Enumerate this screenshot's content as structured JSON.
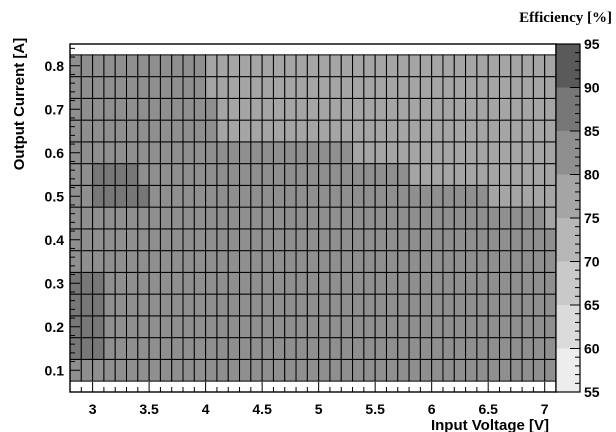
{
  "chart_data": {
    "type": "heatmap",
    "title": "",
    "xlabel": "Input Voltage [V]",
    "ylabel": "Output Current [A]",
    "zlabel": "Efficiency [%]",
    "xlim": [
      2.8,
      7.1
    ],
    "ylim": [
      0.05,
      0.85
    ],
    "zlim": [
      55,
      95
    ],
    "x_ticks": [
      3,
      3.5,
      4,
      4.5,
      5,
      5.5,
      6,
      6.5,
      7
    ],
    "x_tick_labels": [
      "3",
      "3.5",
      "4",
      "4.5",
      "5",
      "5.5",
      "6",
      "6.5",
      "7"
    ],
    "y_ticks": [
      0.1,
      0.2,
      0.3,
      0.4,
      0.5,
      0.6,
      0.7,
      0.8
    ],
    "y_tick_labels": [
      "0.1",
      "0.2",
      "0.3",
      "0.4",
      "0.5",
      "0.6",
      "0.7",
      "0.8"
    ],
    "z_ticks": [
      55,
      60,
      65,
      70,
      75,
      80,
      85,
      90,
      95
    ],
    "z_tick_labels": [
      "55",
      "60",
      "65",
      "70",
      "75",
      "80",
      "85",
      "90",
      "95"
    ],
    "x_bins": [
      2.8,
      2.9,
      3.0,
      3.1,
      3.2,
      3.3,
      3.4,
      3.5,
      3.6,
      3.7,
      3.8,
      3.9,
      4.0,
      4.1,
      4.2,
      4.3,
      4.4,
      4.5,
      4.6,
      4.7,
      4.8,
      4.9,
      5.0,
      5.1,
      5.2,
      5.3,
      5.4,
      5.5,
      5.6,
      5.7,
      5.8,
      5.9,
      6.0,
      6.1,
      6.2,
      6.3,
      6.4,
      6.5,
      6.6,
      6.7,
      6.8,
      6.9,
      7.0
    ],
    "y_bins": [
      0.1,
      0.15,
      0.2,
      0.25,
      0.3,
      0.35,
      0.4,
      0.45,
      0.5,
      0.55,
      0.6,
      0.65,
      0.7,
      0.75,
      0.8
    ],
    "cell_width": 0.1,
    "cell_height": 0.05,
    "z_values": [
      [
        83,
        81,
        80,
        80,
        80,
        80,
        80,
        80,
        80,
        80,
        80,
        80,
        80,
        80,
        80,
        80,
        80,
        80,
        80,
        80,
        80,
        80,
        80,
        80,
        80,
        80,
        80,
        80,
        80,
        80,
        80,
        80,
        80,
        80,
        80,
        80,
        80,
        80,
        80,
        80,
        80,
        80,
        80
      ],
      [
        87,
        86,
        85,
        84,
        84,
        84,
        84,
        84,
        84,
        84,
        84,
        84,
        84,
        84,
        84,
        84,
        84,
        84,
        84,
        84,
        84,
        84,
        84,
        84,
        84,
        84,
        84,
        84,
        84,
        84,
        82,
        82,
        82,
        82,
        82,
        82,
        82,
        82,
        82,
        82,
        82,
        82,
        80
      ],
      [
        87,
        86,
        85,
        84,
        84,
        84,
        84,
        84,
        84,
        84,
        84,
        84,
        84,
        84,
        84,
        84,
        84,
        84,
        84,
        84,
        84,
        84,
        84,
        84,
        84,
        84,
        84,
        84,
        84,
        84,
        82,
        82,
        82,
        82,
        82,
        82,
        82,
        82,
        82,
        82,
        82,
        82,
        80
      ],
      [
        87,
        86,
        85,
        84,
        84,
        84,
        84,
        84,
        84,
        84,
        84,
        84,
        84,
        84,
        84,
        84,
        84,
        84,
        84,
        84,
        84,
        84,
        84,
        84,
        84,
        84,
        84,
        84,
        84,
        84,
        82,
        82,
        82,
        82,
        82,
        82,
        82,
        82,
        82,
        82,
        82,
        82,
        80
      ],
      [
        87,
        86,
        85,
        84,
        84,
        84,
        84,
        84,
        84,
        84,
        84,
        84,
        84,
        84,
        84,
        84,
        84,
        84,
        84,
        84,
        84,
        84,
        84,
        84,
        84,
        84,
        84,
        84,
        84,
        84,
        82,
        82,
        82,
        82,
        82,
        82,
        82,
        82,
        82,
        82,
        82,
        82,
        80
      ],
      [
        83,
        83,
        83,
        83,
        83,
        83,
        83,
        83,
        83,
        83,
        83,
        83,
        83,
        84,
        84,
        84,
        84,
        84,
        84,
        84,
        84,
        84,
        84,
        84,
        84,
        82,
        82,
        82,
        82,
        82,
        82,
        82,
        82,
        82,
        82,
        82,
        82,
        80,
        80,
        80,
        80,
        80,
        80
      ],
      [
        83,
        83,
        83,
        83,
        83,
        83,
        83,
        83,
        83,
        83,
        83,
        83,
        83,
        84,
        84,
        84,
        84,
        84,
        84,
        84,
        84,
        84,
        84,
        84,
        84,
        82,
        82,
        82,
        82,
        82,
        82,
        82,
        82,
        82,
        82,
        82,
        82,
        80,
        80,
        80,
        80,
        80,
        80
      ],
      [
        83,
        83,
        83,
        83,
        83,
        83,
        83,
        83,
        83,
        83,
        83,
        83,
        83,
        83,
        83,
        83,
        83,
        83,
        83,
        83,
        83,
        83,
        83,
        83,
        83,
        82,
        82,
        82,
        82,
        82,
        82,
        82,
        80,
        80,
        80,
        80,
        80,
        80,
        80,
        80,
        80,
        80,
        78
      ],
      [
        83,
        84,
        85,
        85,
        85,
        85,
        85,
        84,
        84,
        84,
        84,
        82,
        82,
        82,
        82,
        82,
        82,
        82,
        82,
        82,
        82,
        82,
        82,
        82,
        82,
        80,
        80,
        80,
        80,
        80,
        80,
        80,
        80,
        80,
        80,
        80,
        80,
        78,
        78,
        78,
        78,
        78,
        78
      ],
      [
        83,
        84,
        85,
        85,
        85,
        85,
        84,
        84,
        84,
        84,
        82,
        82,
        82,
        82,
        82,
        82,
        82,
        80,
        80,
        80,
        80,
        80,
        80,
        80,
        80,
        80,
        80,
        80,
        80,
        80,
        78,
        78,
        78,
        78,
        78,
        78,
        78,
        78,
        78,
        78,
        78,
        78,
        78
      ],
      [
        83,
        83,
        83,
        83,
        82,
        82,
        82,
        82,
        82,
        82,
        80,
        80,
        80,
        80,
        80,
        80,
        80,
        80,
        80,
        80,
        80,
        80,
        80,
        80,
        80,
        78,
        78,
        78,
        78,
        78,
        78,
        78,
        78,
        78,
        78,
        78,
        78,
        78,
        78,
        78,
        78,
        78,
        78
      ],
      [
        80,
        80,
        80,
        80,
        80,
        80,
        80,
        80,
        80,
        80,
        80,
        80,
        80,
        78,
        78,
        78,
        78,
        78,
        78,
        78,
        78,
        78,
        78,
        78,
        78,
        78,
        78,
        78,
        78,
        78,
        78,
        78,
        78,
        78,
        78,
        78,
        78,
        78,
        78,
        78,
        78,
        78,
        78
      ],
      [
        80,
        80,
        80,
        80,
        80,
        80,
        80,
        80,
        80,
        80,
        80,
        80,
        80,
        78,
        78,
        78,
        78,
        78,
        78,
        78,
        78,
        78,
        78,
        78,
        78,
        78,
        78,
        78,
        78,
        78,
        78,
        78,
        78,
        78,
        78,
        78,
        78,
        78,
        78,
        78,
        78,
        78,
        78
      ],
      [
        80,
        80,
        80,
        80,
        80,
        80,
        80,
        80,
        80,
        80,
        80,
        80,
        78,
        78,
        78,
        78,
        78,
        78,
        78,
        78,
        78,
        78,
        78,
        78,
        78,
        78,
        78,
        78,
        78,
        78,
        78,
        78,
        78,
        78,
        78,
        78,
        78,
        78,
        78,
        78,
        78,
        78,
        78
      ],
      [
        80,
        80,
        80,
        80,
        80,
        80,
        80,
        80,
        80,
        80,
        80,
        80,
        78,
        78,
        78,
        78,
        78,
        78,
        78,
        78,
        78,
        78,
        78,
        78,
        78,
        78,
        78,
        78,
        78,
        78,
        78,
        78,
        78,
        78,
        78,
        78,
        78,
        78,
        78,
        78,
        78,
        78,
        78
      ]
    ],
    "colorbar_levels": [
      {
        "from": 55,
        "to": 60,
        "color": "#ededed"
      },
      {
        "from": 60,
        "to": 65,
        "color": "#dbdbdb"
      },
      {
        "from": 65,
        "to": 70,
        "color": "#c9c9c9"
      },
      {
        "from": 70,
        "to": 75,
        "color": "#b7b7b7"
      },
      {
        "from": 75,
        "to": 80,
        "color": "#a5a5a5"
      },
      {
        "from": 80,
        "to": 85,
        "color": "#8f8f8f"
      },
      {
        "from": 85,
        "to": 90,
        "color": "#777777"
      },
      {
        "from": 90,
        "to": 95,
        "color": "#5a5a5a"
      }
    ],
    "grid": true,
    "legend": "right colorbar"
  }
}
